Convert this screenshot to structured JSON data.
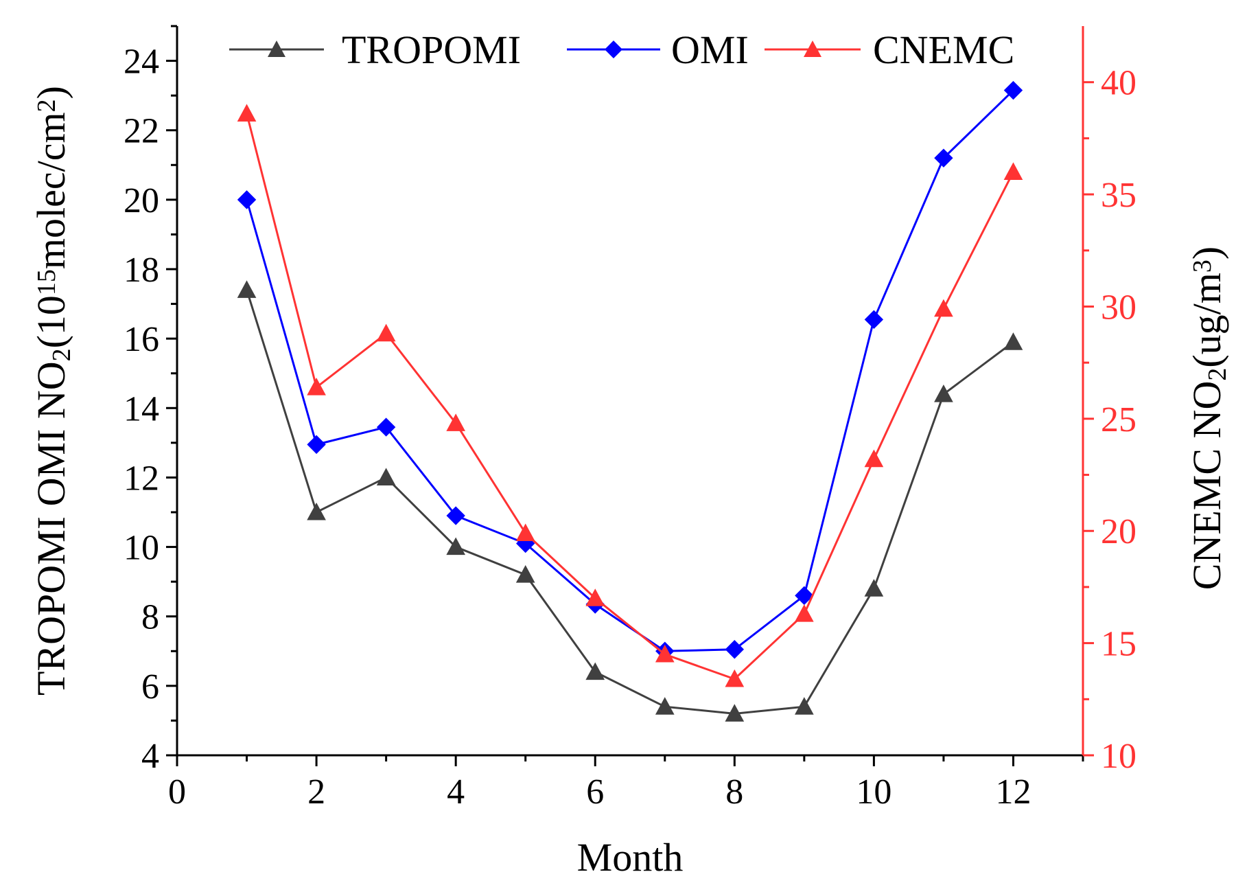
{
  "chart_data": {
    "type": "line",
    "x": [
      1,
      2,
      3,
      4,
      5,
      6,
      7,
      8,
      9,
      10,
      11,
      12
    ],
    "series": [
      {
        "name": "TROPOMI",
        "axis": "left",
        "color": "#404040",
        "marker": "triangle",
        "values": [
          17.4,
          11.0,
          12.0,
          10.0,
          9.2,
          6.4,
          5.4,
          5.2,
          5.4,
          8.8,
          14.4,
          15.9
        ]
      },
      {
        "name": "OMI",
        "axis": "left",
        "color": "#0000ff",
        "marker": "diamond",
        "values": [
          20.0,
          12.95,
          13.45,
          10.9,
          10.1,
          8.35,
          7.0,
          7.05,
          8.6,
          16.55,
          21.2,
          23.15
        ]
      },
      {
        "name": "CNEMC",
        "axis": "right",
        "color": "#ff3333",
        "marker": "triangle",
        "values": [
          38.6,
          26.4,
          28.8,
          24.8,
          19.9,
          17.0,
          14.5,
          13.4,
          16.3,
          23.2,
          29.9,
          36.0
        ]
      }
    ],
    "xlabel": "Month",
    "xlim": [
      0,
      13
    ],
    "xticks": [
      "0",
      "2",
      "4",
      "6",
      "8",
      "10",
      "12"
    ],
    "ylabel_left": {
      "prefix": "TROPOMI OMI NO",
      "sub": "2",
      "mid": "(10",
      "sup": "15",
      "mid2": "molec/cm",
      "sup2": "2",
      "suffix": ")"
    },
    "ylim_left": [
      4,
      25
    ],
    "yticks_left": [
      "4",
      "6",
      "8",
      "10",
      "12",
      "14",
      "16",
      "18",
      "20",
      "22",
      "24"
    ],
    "ylabel_right": {
      "prefix": "CNEMC NO",
      "sub": "2",
      "mid": "(ug/m",
      "sup": "3",
      "suffix": ")"
    },
    "ylim_right": [
      10,
      42.5
    ],
    "yticks_right": [
      "10",
      "15",
      "20",
      "25",
      "30",
      "35",
      "40"
    ],
    "right_axis_color": "#ff3333",
    "legend_position": "top"
  }
}
